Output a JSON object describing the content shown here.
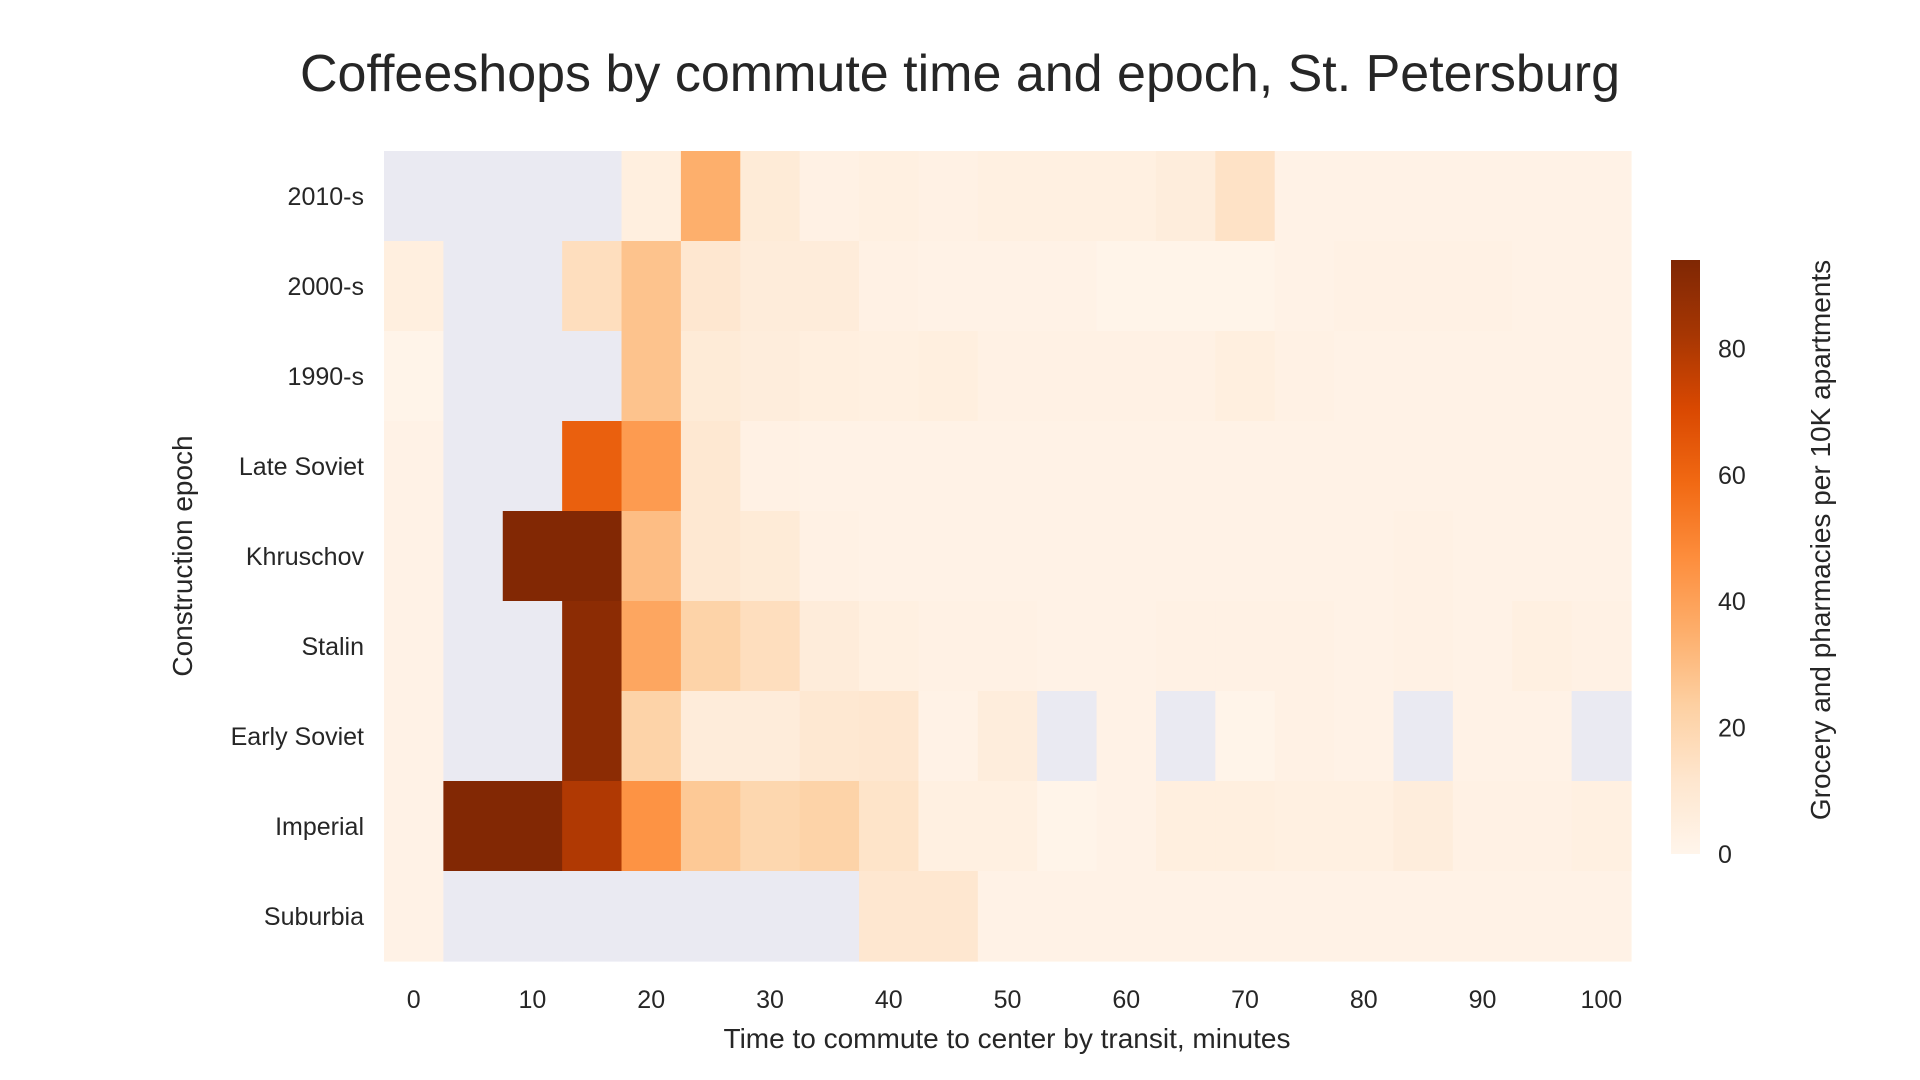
{
  "chart_data": {
    "type": "heatmap",
    "title": "Coffeeshops by commute time and epoch, St. Petersburg",
    "xlabel": "Time to commute to center by transit, minutes",
    "ylabel": "Construction epoch",
    "colorbar_label": "Grocery and pharmacies per 10K apartments",
    "colormap": "Oranges",
    "missing_color": "#eaeaf2",
    "vmin": 0,
    "vmax": 94,
    "colorbar_ticks": [
      0,
      20,
      40,
      60,
      80
    ],
    "x": [
      0,
      5,
      10,
      15,
      20,
      25,
      30,
      35,
      40,
      45,
      50,
      55,
      60,
      65,
      70,
      75,
      80,
      85,
      90,
      95,
      100
    ],
    "xticks": [
      0,
      10,
      20,
      30,
      40,
      50,
      60,
      70,
      80,
      90,
      100
    ],
    "rows": [
      "2010-s",
      "2000-s",
      "1990-s",
      "Late Soviet",
      "Khruschov",
      "Stalin",
      "Early Soviet",
      "Imperial",
      "Suburbia"
    ],
    "values": [
      [
        null,
        null,
        null,
        null,
        5,
        35,
        8,
        3,
        4,
        3,
        4,
        4,
        4,
        6,
        14,
        2,
        2,
        2,
        2,
        2,
        2
      ],
      [
        5,
        null,
        null,
        16,
        28,
        11,
        7,
        7,
        3,
        2,
        2,
        2,
        1,
        1,
        1,
        2,
        3,
        3,
        3,
        2,
        2
      ],
      [
        1,
        null,
        null,
        null,
        28,
        8,
        6,
        5,
        4,
        5,
        3,
        3,
        3,
        3,
        5,
        3,
        2,
        2,
        2,
        2,
        2
      ],
      [
        2,
        null,
        null,
        62,
        42,
        10,
        3,
        2,
        2,
        2,
        2,
        2,
        2,
        2,
        2,
        2,
        2,
        2,
        2,
        2,
        2
      ],
      [
        2,
        null,
        93,
        93,
        30,
        10,
        8,
        3,
        2,
        2,
        2,
        2,
        2,
        2,
        2,
        2,
        2,
        3,
        2,
        2,
        2
      ],
      [
        2,
        null,
        null,
        90,
        38,
        22,
        16,
        7,
        4,
        3,
        3,
        2,
        2,
        3,
        3,
        3,
        2,
        3,
        2,
        4,
        3
      ],
      [
        2,
        null,
        null,
        90,
        22,
        7,
        7,
        10,
        11,
        2,
        6,
        null,
        2,
        null,
        1,
        3,
        2,
        null,
        2,
        2,
        null
      ],
      [
        2,
        93,
        93,
        80,
        45,
        26,
        20,
        22,
        13,
        4,
        4,
        1,
        2,
        5,
        5,
        4,
        4,
        6,
        3,
        3,
        4
      ],
      [
        2,
        null,
        null,
        null,
        null,
        null,
        null,
        null,
        11,
        11,
        2,
        2,
        2,
        2,
        2,
        2,
        2,
        2,
        2,
        2,
        2
      ]
    ]
  }
}
